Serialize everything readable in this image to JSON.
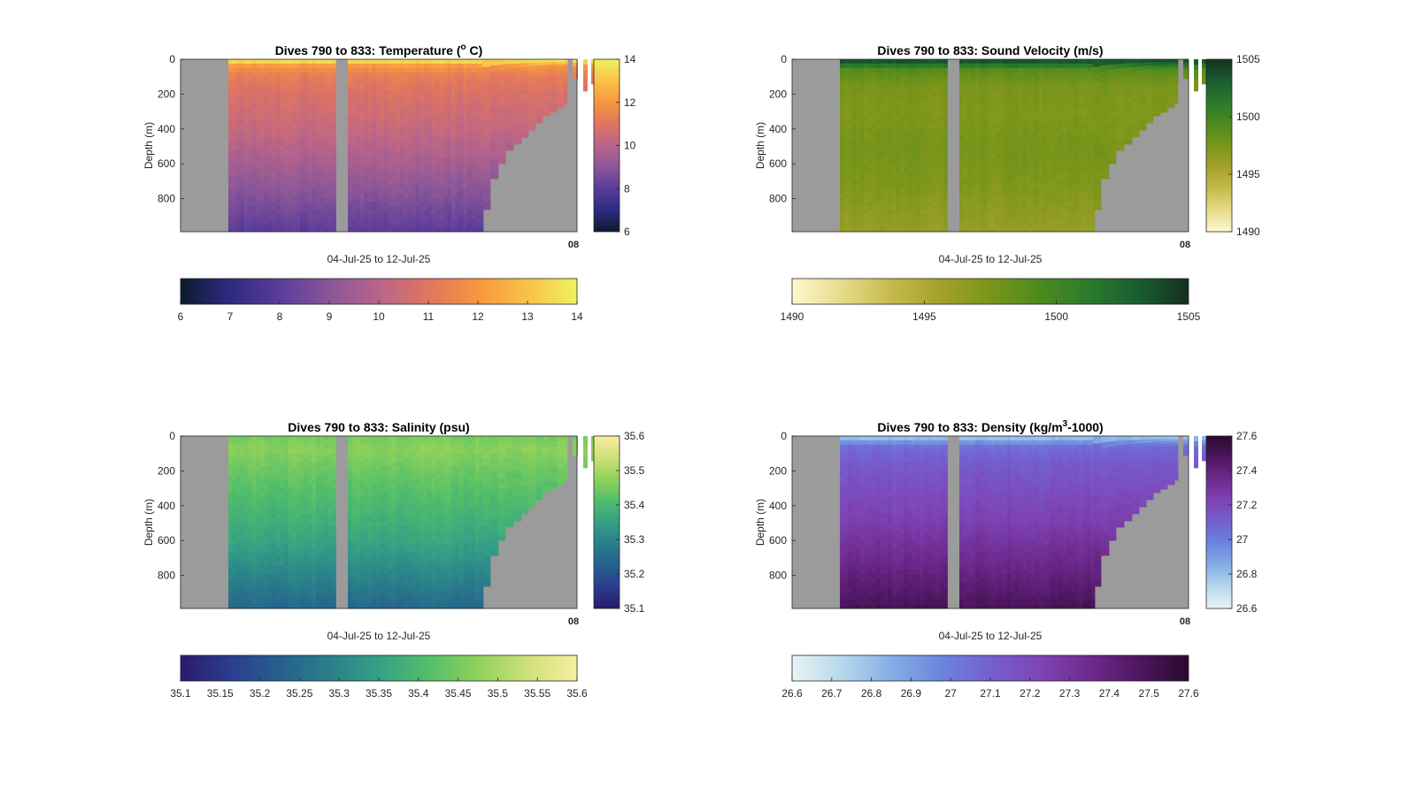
{
  "chart_data": [
    {
      "type": "heatmap",
      "title_main": "Dives 790 to 833: Temperature (",
      "title_sup": "o",
      "title_tail": " C)",
      "xlabel": "04-Jul-25 to 12-Jul-25",
      "ylabel": "Depth (m)",
      "yticks": [
        0,
        200,
        400,
        600,
        800
      ],
      "ylim": [
        0,
        990
      ],
      "xtick_label": "08",
      "colormap": [
        "#0b1b2b",
        "#2f2a80",
        "#5a3c9a",
        "#8a5698",
        "#b8648a",
        "#e07560",
        "#f7963e",
        "#f9c148",
        "#eef25e"
      ],
      "clim": [
        6,
        14
      ],
      "cbar_right_ticks": [
        14,
        12,
        10,
        8,
        6
      ],
      "cbar_bottom_ticks": [
        6,
        7,
        8,
        9,
        10,
        11,
        12,
        13,
        14
      ],
      "profile": [
        [
          0,
          14
        ],
        [
          15,
          13.3
        ],
        [
          40,
          12.0
        ],
        [
          90,
          11.3
        ],
        [
          200,
          10.8
        ],
        [
          400,
          10.3
        ],
        [
          600,
          9.6
        ],
        [
          800,
          8.8
        ],
        [
          990,
          8.0
        ]
      ]
    },
    {
      "type": "heatmap",
      "title_main": "Dives 790 to 833: Sound Velocity (m/s)",
      "title_sup": "",
      "title_tail": "",
      "xlabel": "04-Jul-25 to 12-Jul-25",
      "ylabel": "Depth (m)",
      "yticks": [
        0,
        200,
        400,
        600,
        800
      ],
      "ylim": [
        0,
        990
      ],
      "xtick_label": "08",
      "colormap": [
        "#fdf8d0",
        "#e6db8a",
        "#c6b94c",
        "#a3a12a",
        "#79951a",
        "#4d8a1e",
        "#2a7a2c",
        "#1a5c30",
        "#14301e"
      ],
      "clim": [
        1490,
        1505
      ],
      "cbar_right_ticks": [
        1505,
        1500,
        1495,
        1490
      ],
      "cbar_bottom_ticks": [
        1490,
        1495,
        1500,
        1505
      ],
      "profile": [
        [
          0,
          1504
        ],
        [
          20,
          1503
        ],
        [
          60,
          1499
        ],
        [
          150,
          1497.5
        ],
        [
          300,
          1497.2
        ],
        [
          500,
          1497.6
        ],
        [
          700,
          1497.3
        ],
        [
          900,
          1496.5
        ],
        [
          990,
          1496.2
        ]
      ]
    },
    {
      "type": "heatmap",
      "title_main": "Dives 790 to 833: Salinity (psu)",
      "title_sup": "",
      "title_tail": "",
      "xlabel": "04-Jul-25 to 12-Jul-25",
      "ylabel": "Depth (m)",
      "yticks": [
        0,
        200,
        400,
        600,
        800
      ],
      "ylim": [
        0,
        990
      ],
      "xtick_label": "08",
      "colormap": [
        "#2b1a6c",
        "#2a3d8f",
        "#25608c",
        "#2a7f8a",
        "#35a085",
        "#52be6a",
        "#8fd25a",
        "#cfe07a",
        "#f8eea0"
      ],
      "clim": [
        35.1,
        35.6
      ],
      "cbar_right_ticks": [
        35.6,
        35.5,
        35.4,
        35.3,
        35.2,
        35.1
      ],
      "cbar_bottom_ticks": [
        "35.1",
        "35.15",
        "35.2",
        "35.25",
        "35.3",
        "35.35",
        "35.4",
        "35.45",
        "35.5",
        "35.55",
        "35.6"
      ],
      "profile": [
        [
          0,
          35.45
        ],
        [
          80,
          35.47
        ],
        [
          200,
          35.44
        ],
        [
          400,
          35.4
        ],
        [
          600,
          35.36
        ],
        [
          800,
          35.3
        ],
        [
          990,
          35.24
        ]
      ]
    },
    {
      "type": "heatmap",
      "title_main": "Dives 790 to 833: Density (kg/m",
      "title_sup": "3",
      "title_tail": "-1000)",
      "xlabel": "04-Jul-25 to 12-Jul-25",
      "ylabel": "Depth (m)",
      "yticks": [
        0,
        200,
        400,
        600,
        800
      ],
      "ylim": [
        0,
        990
      ],
      "xtick_label": "08",
      "colormap": [
        "#e9f4f4",
        "#b6d8ec",
        "#86aee6",
        "#6b85de",
        "#7460cf",
        "#7e44b6",
        "#6e2a8e",
        "#4e1660",
        "#2a0a2e"
      ],
      "clim": [
        26.6,
        27.6
      ],
      "cbar_right_ticks": [
        "27.6",
        "27.4",
        "27.2",
        "27",
        "26.8",
        "26.6"
      ],
      "cbar_bottom_ticks": [
        "26.6",
        "26.7",
        "26.8",
        "26.9",
        "27",
        "27.1",
        "27.2",
        "27.3",
        "27.4",
        "27.5",
        "27.6"
      ],
      "profile": [
        [
          0,
          26.75
        ],
        [
          30,
          26.9
        ],
        [
          60,
          27.05
        ],
        [
          150,
          27.12
        ],
        [
          300,
          27.18
        ],
        [
          500,
          27.25
        ],
        [
          700,
          27.35
        ],
        [
          900,
          27.45
        ],
        [
          990,
          27.5
        ]
      ]
    }
  ]
}
